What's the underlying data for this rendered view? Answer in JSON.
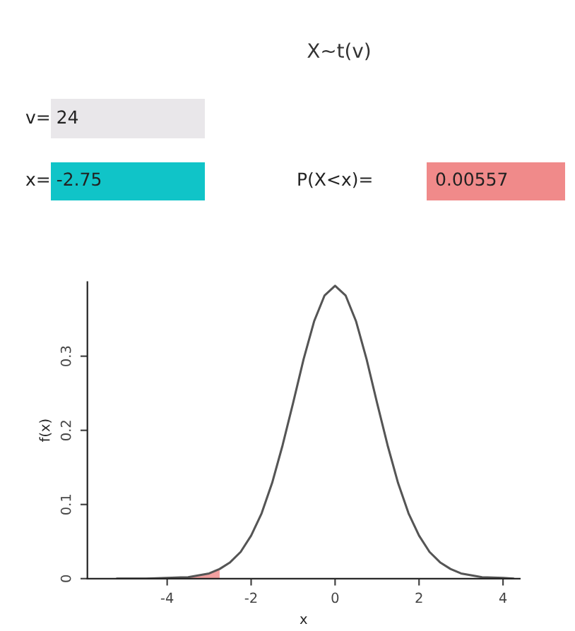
{
  "chart_data": {
    "type": "line",
    "title": "X~t(v)",
    "annotations": [
      "v= 24",
      "x= -2.75",
      "P(X<x)=",
      "0.00557"
    ],
    "xlabel": "x",
    "ylabel": "f(x)",
    "series": [
      {
        "type": "area",
        "color": "#f2a0a0",
        "x": [
          -5.2,
          -5,
          -4.5,
          -4,
          -3.5,
          -3.25,
          -3,
          -2.75
        ],
        "values": [
          0.0,
          0.0,
          0.0,
          0.001,
          0.002,
          0.004,
          0.007,
          0.013
        ]
      },
      {
        "color": "#555555",
        "x": [
          -5.2,
          -5,
          -4.5,
          -4,
          -3.5,
          -3,
          -2.75,
          -2.5,
          -2.25,
          -2,
          -1.75,
          -1.5,
          -1.25,
          -1,
          -0.75,
          -0.5,
          -0.25,
          0,
          0.25,
          0.5,
          0.75,
          1,
          1.25,
          1.5,
          1.75,
          2,
          2.25,
          2.5,
          2.75,
          3,
          3.5,
          4,
          4.25
        ],
        "values": [
          0.0,
          0.0,
          0.0,
          0.001,
          0.002,
          0.007,
          0.013,
          0.022,
          0.036,
          0.058,
          0.088,
          0.129,
          0.18,
          0.237,
          0.296,
          0.347,
          0.382,
          0.395,
          0.382,
          0.347,
          0.296,
          0.237,
          0.18,
          0.129,
          0.088,
          0.058,
          0.036,
          0.022,
          0.013,
          0.007,
          0.002,
          0.001,
          0.0
        ]
      }
    ],
    "xlim": [
      -5.9,
      4.4
    ],
    "xticks": [
      -4,
      -2,
      0,
      2,
      4
    ],
    "ylim": [
      0,
      0.4
    ],
    "yticks": [
      0,
      0.1,
      0.2,
      0.3
    ],
    "grid": false,
    "legend": false
  }
}
